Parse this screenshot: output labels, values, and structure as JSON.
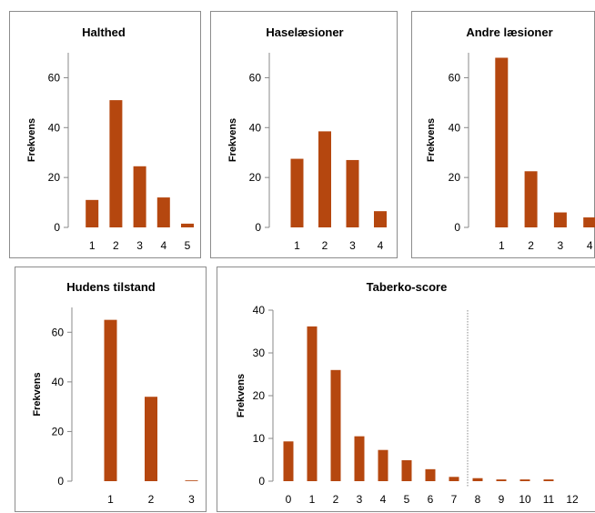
{
  "colors": {
    "bar": "#B5470F",
    "axis": "#888888",
    "frame": "#8c8c8c"
  },
  "chart_data": [
    {
      "type": "bar",
      "title": "Halthed",
      "ylabel": "Frekvens",
      "categories": [
        "1",
        "2",
        "3",
        "4",
        "5"
      ],
      "values": [
        11,
        51,
        24.5,
        12,
        1.5
      ],
      "ylim": [
        0,
        70
      ],
      "yticks": [
        0,
        20,
        40,
        60
      ]
    },
    {
      "type": "bar",
      "title": "Haselæsioner",
      "ylabel": "Frekvens",
      "categories": [
        "1",
        "2",
        "3",
        "4"
      ],
      "values": [
        27.5,
        38.5,
        27,
        6.5
      ],
      "ylim": [
        0,
        70
      ],
      "yticks": [
        0,
        20,
        40,
        60
      ]
    },
    {
      "type": "bar",
      "title": "Andre læsioner",
      "ylabel": "Frekvens",
      "categories": [
        "1",
        "2",
        "3",
        "4"
      ],
      "values": [
        68,
        22.5,
        6,
        4
      ],
      "ylim": [
        0,
        70
      ],
      "yticks": [
        0,
        20,
        40,
        60
      ]
    },
    {
      "type": "bar",
      "title": "Hudens tilstand",
      "ylabel": "Frekvens",
      "categories": [
        "1",
        "2",
        "3"
      ],
      "values": [
        65,
        34,
        0.3
      ],
      "ylim": [
        0,
        70
      ],
      "yticks": [
        0,
        20,
        40,
        60
      ]
    },
    {
      "type": "bar",
      "title": "Taberko-score",
      "ylabel": "Frekvens",
      "categories": [
        "0",
        "1",
        "2",
        "3",
        "4",
        "5",
        "6",
        "7",
        "8",
        "9",
        "10",
        "11",
        "12"
      ],
      "values": [
        9.3,
        36.2,
        26,
        10.5,
        7.3,
        4.9,
        2.8,
        1.0,
        0.7,
        0.4,
        0.4,
        0.4,
        0
      ],
      "ylim": [
        0,
        40
      ],
      "yticks": [
        0,
        10,
        20,
        30,
        40
      ],
      "reference_line_between": [
        "7",
        "8"
      ]
    }
  ]
}
